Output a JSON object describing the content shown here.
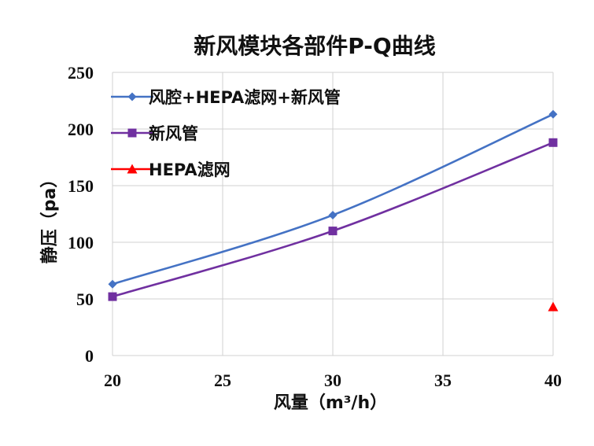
{
  "chart_data": {
    "type": "line",
    "title": "新风模块各部件P-Q曲线",
    "xlabel": "风量（m³/h）",
    "ylabel": "静压（pa）",
    "x_ticks": [
      20,
      25,
      30,
      35,
      40
    ],
    "y_ticks": [
      0,
      50,
      100,
      150,
      200,
      250
    ],
    "xlim": [
      20,
      40
    ],
    "ylim": [
      0,
      250
    ],
    "grid": true,
    "legend_position": "top-left",
    "series": [
      {
        "name": "风腔+HEPA滤网+新风管",
        "color": "#4472C4",
        "marker": "diamond",
        "x": [
          20,
          30,
          40
        ],
        "y": [
          63,
          124,
          213
        ]
      },
      {
        "name": "新风管",
        "color": "#7030A0",
        "marker": "square",
        "x": [
          20,
          30,
          40
        ],
        "y": [
          52,
          110,
          188
        ]
      },
      {
        "name": "HEPA滤网",
        "color": "#FF0000",
        "marker": "triangle",
        "x": [
          40
        ],
        "y": [
          43
        ]
      }
    ]
  }
}
